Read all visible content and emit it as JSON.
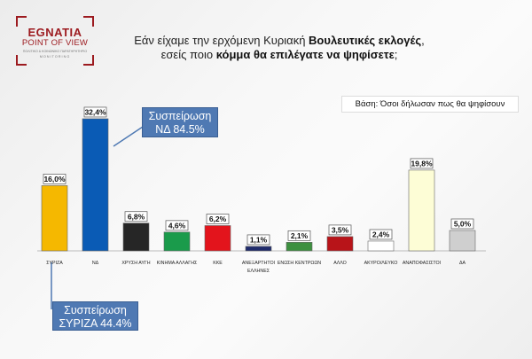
{
  "logo": {
    "brand": "EGNATIA",
    "line2": "POINT OF VIEW",
    "line3": "ΠΟΛΙΤΙΚΟ & ΚΟΙΝΩΝΙΚΟ ΠΑΡΑΤΗΡΗΤΗΡΙΟ",
    "line4": "MONITORING",
    "accent_color": "#9c1a1f"
  },
  "question": {
    "part1": "Εάν είχαμε την ερχόμενη Κυριακή ",
    "emph1": "Βουλευτικές εκλογές",
    "part2": ",",
    "part3": "εσείς ποιο ",
    "emph2": "κόμμα θα επιλέγατε να ψηφίσετε",
    "part4": ";"
  },
  "base_note": "Βάση: Όσοι δήλωσαν πως θα ψηφίσουν",
  "callouts": {
    "nd": {
      "line1": "Συσπείρωση",
      "line2": "ΝΔ 84.5%"
    },
    "syriza": {
      "line1": "Συσπείρωση",
      "line2": "ΣΥΡΙΖΑ 44.4%"
    }
  },
  "chart_data": {
    "type": "bar",
    "categories": [
      [
        "ΣΥΡΙΖΑ"
      ],
      [
        "ΝΔ"
      ],
      [
        "ΧΡΥΣΗ ΑΥΓΗ"
      ],
      [
        "ΚΙΝΗΜΑ ΑΛΛΑΓΗΣ"
      ],
      [
        "ΚΚΕ"
      ],
      [
        "ΑΝΕΞΑΡΤΗΤΟΙ",
        "ΕΛΛΗΝΕΣ"
      ],
      [
        "ΕΝΩΣΗ ΚΕΝΤΡΩΩΝ"
      ],
      [
        "ΑΛΛΟ"
      ],
      [
        "ΑΚΥΡΟ/ΛΕΥΚΟ"
      ],
      [
        "ΑΝΑΠΟΦΑΣΙΣΤΟΙ"
      ],
      [
        "ΔΑ"
      ]
    ],
    "values": [
      16.0,
      32.4,
      6.8,
      4.6,
      6.2,
      1.1,
      2.1,
      3.5,
      2.4,
      19.8,
      5.0
    ],
    "labels": [
      "16,0%",
      "32,4%",
      "6,8%",
      "4,6%",
      "6,2%",
      "1,1%",
      "2,1%",
      "3,5%",
      "2,4%",
      "19,8%",
      "5,0%"
    ],
    "colors": [
      "#f5b800",
      "#0a5bb5",
      "#262626",
      "#1a9b4b",
      "#e3141c",
      "#1f2b6b",
      "#3d9040",
      "#b81419",
      "#ffffff",
      "#fdfdd6",
      "#cfcfcf"
    ],
    "ylim": [
      0,
      35
    ],
    "grid": false,
    "legend": "none"
  }
}
